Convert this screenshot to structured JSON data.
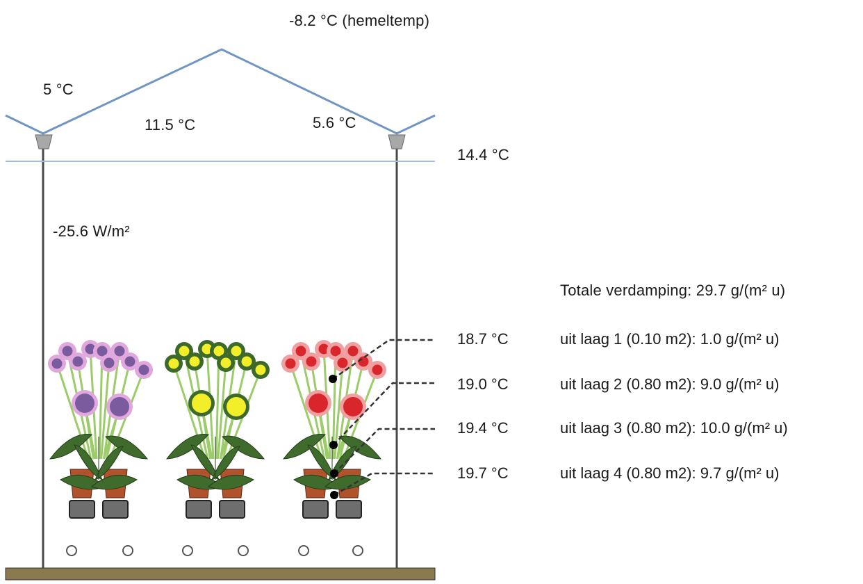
{
  "labels": {
    "sky_temp": "-8.2 °C (hemeltemp)",
    "roof_left_temp": "5 °C",
    "roof_inner_temp": "11.5 °C",
    "roof_right_temp": "5.6 °C",
    "screen_temp": "14.4 °C",
    "radiation": "-25.6 W/m²",
    "total_evaporation": "Totale verdamping: 29.7 g/(m² u)"
  },
  "layers": [
    {
      "temp": "18.7 °C",
      "evaporation": "uit laag 1 (0.10 m2): 1.0 g/(m² u)"
    },
    {
      "temp": "19.0 °C",
      "evaporation": "uit laag 2 (0.80 m2): 9.0 g/(m² u)"
    },
    {
      "temp": "19.4 °C",
      "evaporation": "uit laag 3 (0.80 m2): 10.0 g/(m² u)"
    },
    {
      "temp": "19.7 °C",
      "evaporation": "uit laag 4 (0.80 m2): 9.7 g/(m² u)"
    }
  ],
  "colors": {
    "roof": "#6f95c2",
    "screen": "#9cbfe3",
    "structure": "#4a4a4a",
    "floor": "#8a7a4e",
    "leaf": "#3f6b2c",
    "stem": "#9ccc6a",
    "pot": "#b0522c",
    "flower_pink_petal": "#e0a8dc",
    "flower_pink_center": "#7a5b9e",
    "flower_yellow_petal": "#3d6a2a",
    "flower_yellow_center": "#f2ee2a",
    "flower_red_petal": "#f0a0a0",
    "flower_red_center": "#d8262c"
  }
}
